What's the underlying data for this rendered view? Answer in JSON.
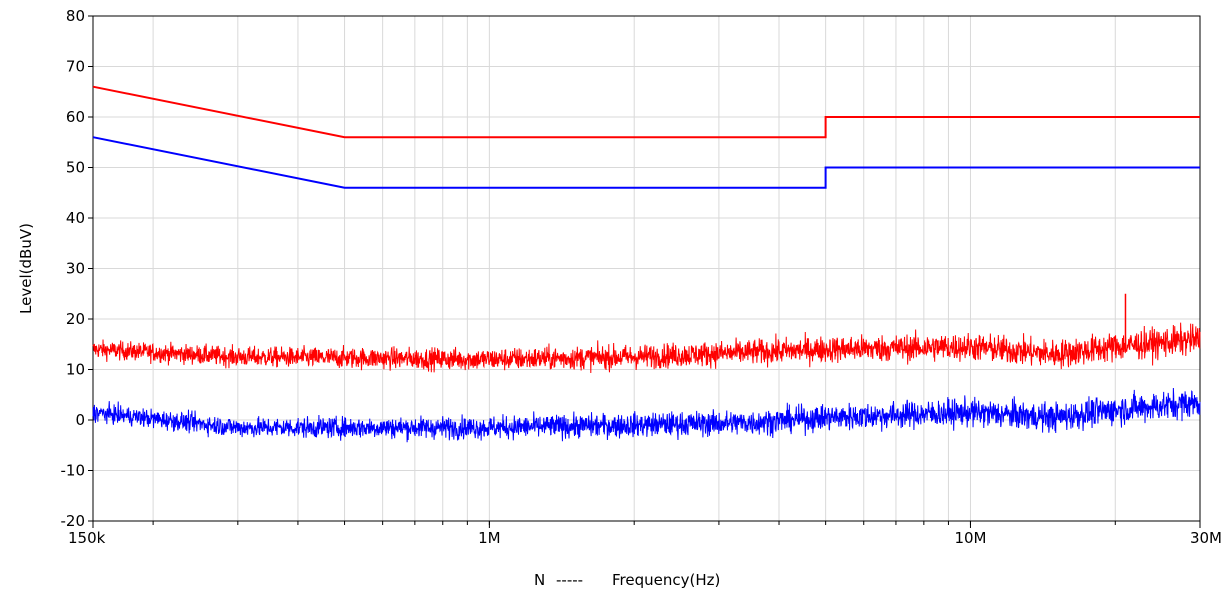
{
  "chart_data": {
    "type": "line",
    "title": "",
    "ylabel": "Level(dBuV)",
    "xlabel_prefix": "N",
    "xlabel_dashes": "-----",
    "xlabel": "Frequency(Hz)",
    "x_scale": "log",
    "xlim": [
      150000,
      30000000
    ],
    "ylim": [
      -20,
      80
    ],
    "grid": true,
    "x_ticks": [
      {
        "value": 150000,
        "label": "150k"
      },
      {
        "value": 1000000,
        "label": "1M"
      },
      {
        "value": 10000000,
        "label": "10M"
      },
      {
        "value": 30000000,
        "label": "30M"
      }
    ],
    "y_ticks": [
      {
        "value": 80,
        "label": "80"
      },
      {
        "value": 70,
        "label": "70"
      },
      {
        "value": 60,
        "label": "60"
      },
      {
        "value": 50,
        "label": "50"
      },
      {
        "value": 40,
        "label": "40"
      },
      {
        "value": 30,
        "label": "30"
      },
      {
        "value": 20,
        "label": "20"
      },
      {
        "value": 10,
        "label": "10"
      },
      {
        "value": 0,
        "label": "0"
      },
      {
        "value": -10,
        "label": "-10"
      },
      {
        "value": -20,
        "label": "-20"
      }
    ],
    "series": [
      {
        "color": "#ff0000",
        "style": "limit",
        "points": [
          [
            150000,
            66
          ],
          [
            500000,
            56
          ],
          [
            5000000,
            56
          ],
          [
            5000000,
            60
          ],
          [
            30000000,
            60
          ]
        ]
      },
      {
        "color": "#0000ff",
        "style": "limit",
        "points": [
          [
            150000,
            56
          ],
          [
            500000,
            46
          ],
          [
            5000000,
            46
          ],
          [
            5000000,
            50
          ],
          [
            30000000,
            50
          ]
        ]
      },
      {
        "color": "#ff0000",
        "style": "noise",
        "baseline": [
          [
            150000,
            14
          ],
          [
            300000,
            12.5
          ],
          [
            1000000,
            12
          ],
          [
            2000000,
            12.5
          ],
          [
            5000000,
            14
          ],
          [
            10000000,
            14.5
          ],
          [
            15000000,
            13
          ],
          [
            20000000,
            14.5
          ],
          [
            30000000,
            16
          ]
        ],
        "spur": {
          "x": 21000000,
          "y": 25
        }
      },
      {
        "color": "#0000ff",
        "style": "noise",
        "baseline": [
          [
            150000,
            1.5
          ],
          [
            300000,
            -1.5
          ],
          [
            1000000,
            -1.5
          ],
          [
            2000000,
            -1
          ],
          [
            3500000,
            -0.5
          ],
          [
            5000000,
            0.5
          ],
          [
            10000000,
            1.5
          ],
          [
            15000000,
            0.5
          ],
          [
            20000000,
            2
          ],
          [
            30000000,
            3.5
          ]
        ]
      }
    ]
  }
}
